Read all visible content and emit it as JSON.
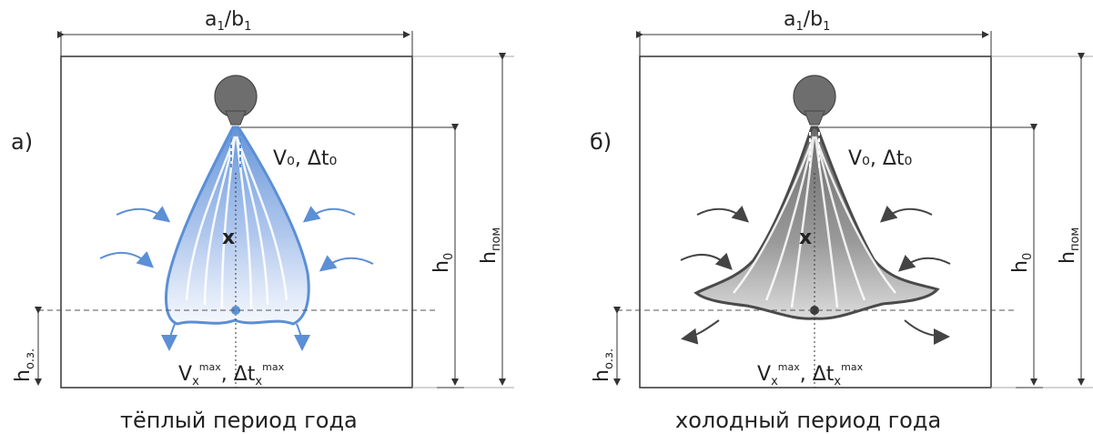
{
  "panel_a": {
    "letter": "а)",
    "width_label": {
      "main": "a",
      "sub1": "1",
      "mid": "/b",
      "sub2": "1"
    },
    "supply_label": "V₀, Δt₀",
    "h0": {
      "main": "h",
      "sub": "0"
    },
    "hpom": {
      "main": "h",
      "sub": "пом"
    },
    "hoz": {
      "main": "h",
      "sub": "о.з."
    },
    "vx_label": {
      "v": "V",
      "vsub": "x",
      "vsup": "max",
      "sep": ", ",
      "dt": "Δt",
      "dtsub": "x",
      "dtsup": "max"
    },
    "x_mark": "x",
    "caption": "тёплый период года"
  },
  "panel_b": {
    "letter": "б)",
    "width_label": {
      "main": "a",
      "sub1": "1",
      "mid": "/b",
      "sub2": "1"
    },
    "supply_label": "V₀, Δt₀",
    "h0": {
      "main": "h",
      "sub": "0"
    },
    "hpom": {
      "main": "h",
      "sub": "пом"
    },
    "hoz": {
      "main": "h",
      "sub": "о.з."
    },
    "vx_label": {
      "v": "V",
      "vsub": "x",
      "vsup": "max",
      "sep": ", ",
      "dt": "Δt",
      "dtsub": "x",
      "dtsup": "max"
    },
    "x_mark": "x",
    "caption": "холодный период года"
  },
  "colors": {
    "warm_jet": "#5b8fd6",
    "cold_jet": "#5a5a5a",
    "line": "#333333",
    "nozzle": "#6e6e6e"
  }
}
